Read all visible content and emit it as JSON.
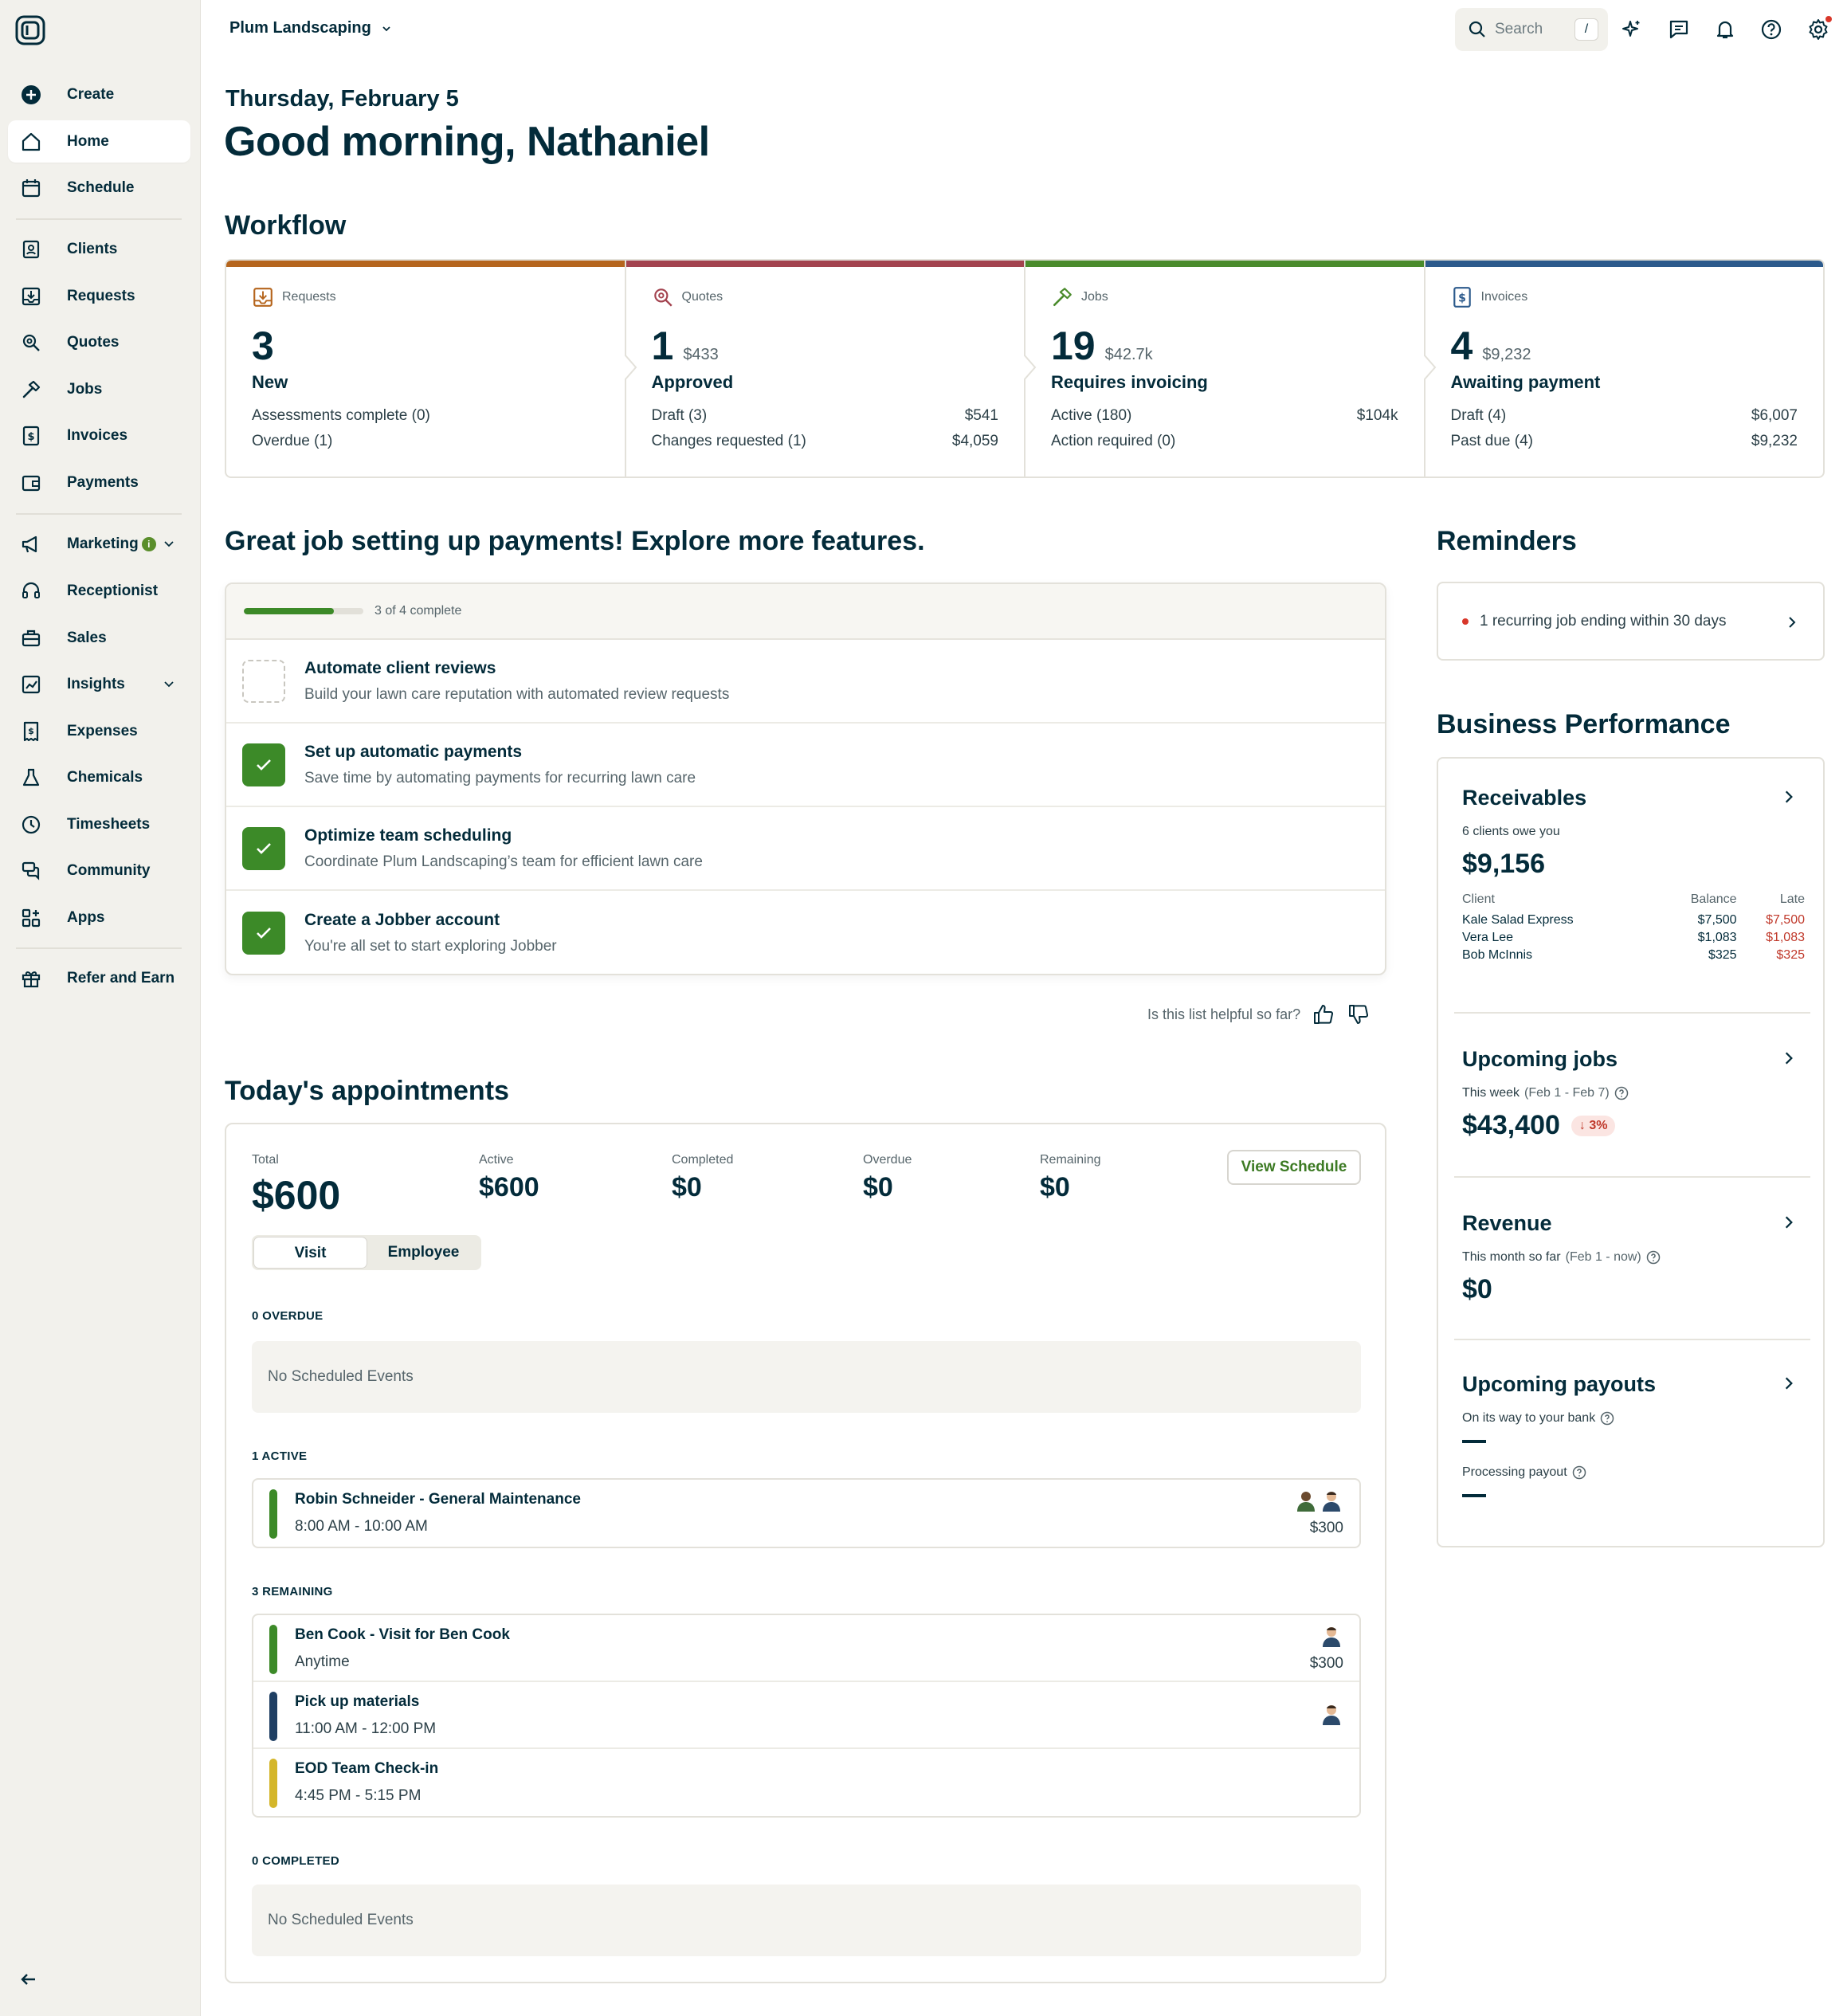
{
  "company": "Plum Landscaping",
  "search": {
    "label": "Search",
    "shortcut": "/"
  },
  "sidebar": {
    "create": "Create",
    "items": [
      {
        "label": "Home"
      },
      {
        "label": "Schedule"
      },
      {
        "label": "Clients"
      },
      {
        "label": "Requests"
      },
      {
        "label": "Quotes"
      },
      {
        "label": "Jobs"
      },
      {
        "label": "Invoices"
      },
      {
        "label": "Payments"
      },
      {
        "label": "Marketing"
      },
      {
        "label": "Receptionist"
      },
      {
        "label": "Sales"
      },
      {
        "label": "Insights"
      },
      {
        "label": "Expenses"
      },
      {
        "label": "Chemicals"
      },
      {
        "label": "Timesheets"
      },
      {
        "label": "Community"
      },
      {
        "label": "Apps"
      },
      {
        "label": "Refer and Earn"
      }
    ],
    "marketing_badge": "i"
  },
  "header": {
    "date": "Thursday, February 5",
    "greeting": "Good morning, Nathaniel"
  },
  "workflow": {
    "title": "Workflow",
    "columns": [
      {
        "head": "Requests",
        "number": "3",
        "amount": "",
        "status": "New",
        "color": "#b5651d",
        "rows": [
          {
            "label": "Assessments complete (0)",
            "value": ""
          },
          {
            "label": "Overdue (1)",
            "value": ""
          }
        ]
      },
      {
        "head": "Quotes",
        "number": "1",
        "amount": "$433",
        "status": "Approved",
        "color": "#a3434f",
        "rows": [
          {
            "label": "Draft (3)",
            "value": "$541"
          },
          {
            "label": "Changes requested (1)",
            "value": "$4,059"
          }
        ]
      },
      {
        "head": "Jobs",
        "number": "19",
        "amount": "$42.7k",
        "status": "Requires invoicing",
        "color": "#4a8b2c",
        "rows": [
          {
            "label": "Active (180)",
            "value": "$104k"
          },
          {
            "label": "Action required (0)",
            "value": ""
          }
        ]
      },
      {
        "head": "Invoices",
        "number": "4",
        "amount": "$9,232",
        "status": "Awaiting payment",
        "color": "#2c5a8c",
        "rows": [
          {
            "label": "Draft (4)",
            "value": "$6,007"
          },
          {
            "label": "Past due (4)",
            "value": "$9,232"
          }
        ]
      }
    ]
  },
  "setup": {
    "title": "Great job setting up payments! Explore more features.",
    "progress_text": "3 of 4 complete",
    "progress_fraction": 0.75,
    "tasks": [
      {
        "title": "Automate client reviews",
        "desc": "Build your lawn care reputation with automated review requests",
        "done": false
      },
      {
        "title": "Set up automatic payments",
        "desc": "Save time by automating payments for recurring lawn care",
        "done": true
      },
      {
        "title": "Optimize team scheduling",
        "desc": "Coordinate Plum Landscaping’s team for efficient lawn care",
        "done": true
      },
      {
        "title": "Create a Jobber account",
        "desc": "You're all set to start exploring Jobber",
        "done": true
      }
    ],
    "feedback": "Is this list helpful so far?"
  },
  "appointments": {
    "title": "Today's appointments",
    "stats": {
      "total_label": "Total",
      "total": "$600",
      "active_label": "Active",
      "active": "$600",
      "completed_label": "Completed",
      "completed": "$0",
      "overdue_label": "Overdue",
      "overdue": "$0",
      "remaining_label": "Remaining",
      "remaining": "$0"
    },
    "view_schedule": "View Schedule",
    "toggle": {
      "visit": "Visit",
      "employee": "Employee"
    },
    "overdue_label": "0 OVERDUE",
    "overdue_empty": "No Scheduled Events",
    "active_label": "1 ACTIVE",
    "active_items": [
      {
        "title": "Robin Schneider - General Maintenance",
        "time": "8:00 AM - 10:00 AM",
        "price": "$300",
        "color": "#3c8a28"
      }
    ],
    "remaining_label": "3 REMAINING",
    "remaining_items": [
      {
        "title": "Ben Cook - Visit for Ben Cook",
        "time": "Anytime",
        "price": "$300",
        "color": "#3c8a28"
      },
      {
        "title": "Pick up materials",
        "time": "11:00 AM - 12:00 PM",
        "price": "",
        "color": "#1f3f63"
      },
      {
        "title": "EOD Team Check-in",
        "time": "4:45 PM - 5:15 PM",
        "price": "",
        "color": "#d4b62a"
      }
    ],
    "completed_label": "0 COMPLETED",
    "completed_empty": "No Scheduled Events"
  },
  "reminders": {
    "title": "Reminders",
    "item": "1 recurring job ending within 30 days"
  },
  "performance": {
    "title": "Business Performance",
    "receivables": {
      "title": "Receivables",
      "sub": "6 clients owe you",
      "amount": "$9,156",
      "headers": [
        "Client",
        "Balance",
        "Late"
      ],
      "rows": [
        {
          "client": "Kale Salad Express",
          "balance": "$7,500",
          "late": "$7,500"
        },
        {
          "client": "Vera Lee",
          "balance": "$1,083",
          "late": "$1,083"
        },
        {
          "client": "Bob McInnis",
          "balance": "$325",
          "late": "$325"
        }
      ]
    },
    "upcoming_jobs": {
      "title": "Upcoming jobs",
      "sub": "This week",
      "range": "(Feb 1 - Feb 7)",
      "amount": "$43,400",
      "change": "↓ 3%"
    },
    "revenue": {
      "title": "Revenue",
      "sub": "This month so far",
      "range": "(Feb 1 - now)",
      "amount": "$0"
    },
    "payouts": {
      "title": "Upcoming payouts",
      "sub1": "On its way to your bank",
      "sub2": "Processing payout"
    }
  }
}
